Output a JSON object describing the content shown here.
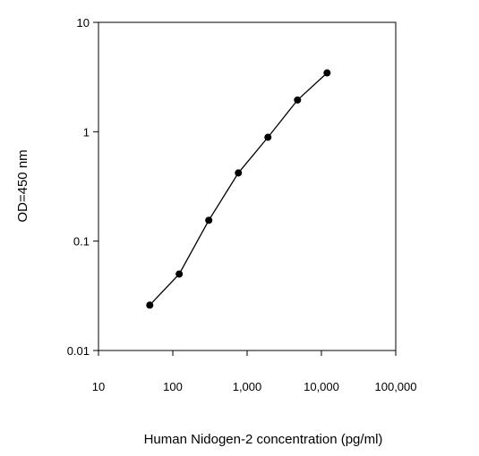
{
  "chart_data": {
    "type": "line",
    "title": "",
    "xlabel": "Human Nidogen-2 concentration (pg/ml)",
    "ylabel": "OD=450 nm",
    "x_scale": "log",
    "y_scale": "log",
    "xlim": [
      10,
      100000
    ],
    "ylim": [
      0.01,
      10
    ],
    "x_ticks": [
      "10",
      "100",
      "1,000",
      "10,000",
      "100,000"
    ],
    "y_ticks": [
      "10",
      "1",
      "0.1",
      "0.01"
    ],
    "grid": false,
    "legend": "none",
    "series": [
      {
        "x": [
          49,
          122,
          305,
          763,
          1906,
          4766,
          11914
        ],
        "y": [
          0.026,
          0.05,
          0.155,
          0.42,
          0.89,
          1.95,
          3.45
        ],
        "color": "#000000",
        "marker": "circle"
      }
    ]
  }
}
